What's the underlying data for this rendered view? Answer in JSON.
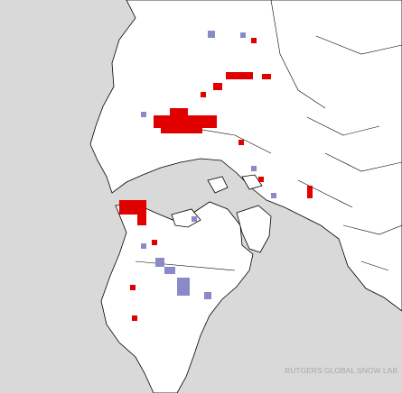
{
  "map": {
    "credit": "RUTGERS GLOBAL SNOW LAB"
  }
}
